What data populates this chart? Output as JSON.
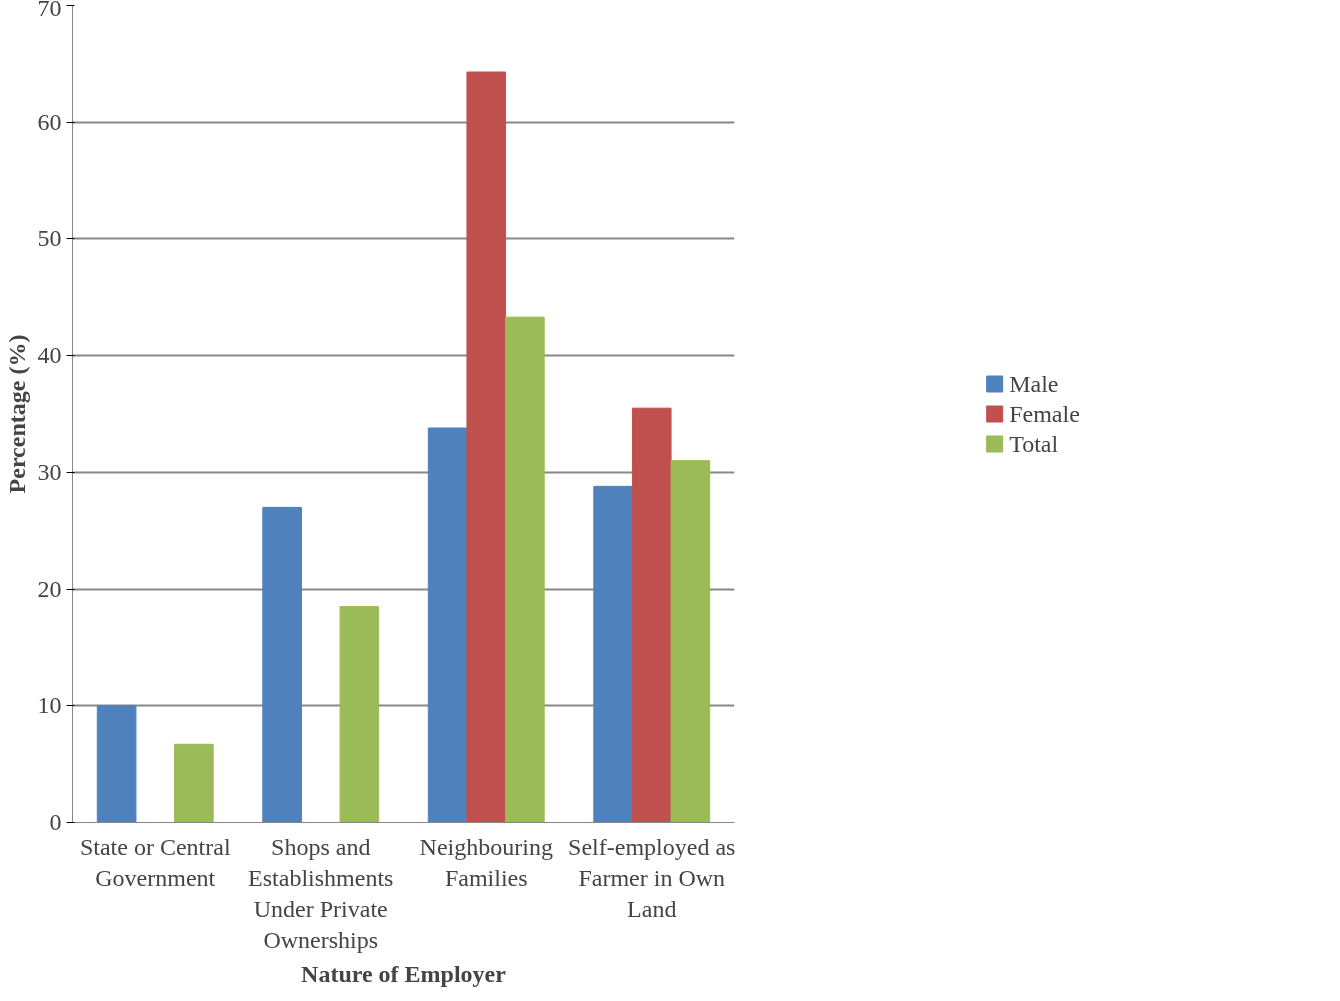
{
  "chart_data": {
    "type": "bar",
    "xlabel": "Nature of Employer",
    "ylabel": "Percentage (%)",
    "categories": [
      "State or Central Government",
      "Shops and Establishments Under Private Ownerships",
      "Neighbouring Families",
      "Self-employed as Farmer in Own Land"
    ],
    "series": [
      {
        "name": "Male",
        "color": "#4f81bd",
        "values": [
          10,
          27,
          33.8,
          28.8
        ]
      },
      {
        "name": "Female",
        "color": "#c0504d",
        "values": [
          0,
          0,
          64.3,
          35.5
        ]
      },
      {
        "name": "Total",
        "color": "#9bbb59",
        "values": [
          6.7,
          18.5,
          43.3,
          31
        ]
      }
    ],
    "ylim": [
      0,
      70
    ],
    "yticks": [
      0,
      10,
      20,
      30,
      40,
      50,
      60,
      70
    ],
    "grid": "y",
    "legend": "right"
  }
}
